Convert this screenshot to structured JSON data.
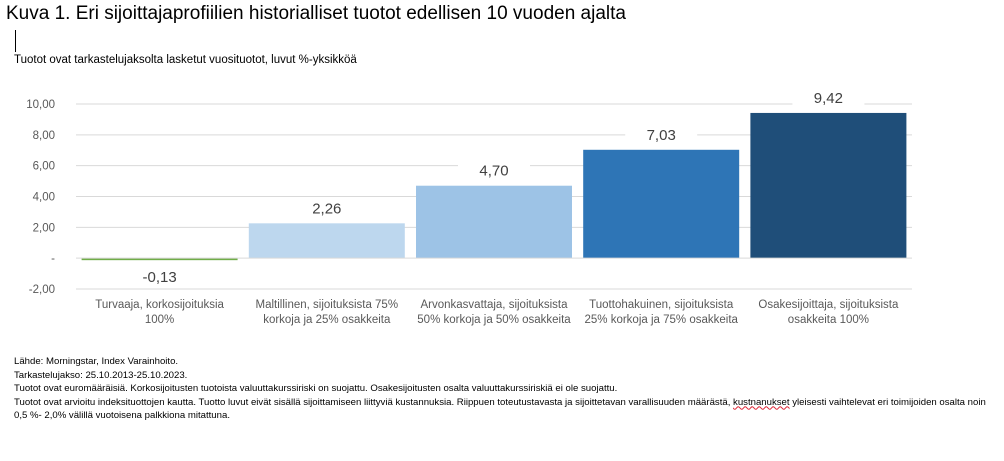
{
  "header": {
    "title": "Kuva 1. Eri sijoittajaprofiilien historialliset tuotot edellisen 10 vuoden ajalta",
    "subtitle": "Tuotot ovat tarkastelujaksolta lasketut vuosituotot, luvut %-yksikköä"
  },
  "chart_data": {
    "type": "bar",
    "title": "",
    "xlabel": "",
    "ylabel": "",
    "ylim": [
      -2,
      10
    ],
    "yticks": [
      10,
      8,
      6,
      4,
      2,
      0,
      -2
    ],
    "ytick_labels": [
      "10,00",
      "8,00",
      "6,00",
      "4,00",
      "2,00",
      "-",
      "-2,00"
    ],
    "grid": true,
    "categories": [
      [
        "Turvaaja, korkosijoituksia",
        "100%"
      ],
      [
        "Maltillinen, sijoituksista 75%",
        "korkoja ja 25% osakkeita"
      ],
      [
        "Arvonkasvattaja, sijoituksista",
        "50% korkoja ja 50% osakkeita"
      ],
      [
        "Tuottohakuinen, sijoituksista",
        "25% korkoja ja 75% osakkeita"
      ],
      [
        "Osakesijoittaja, sijoituksista",
        "osakkeita 100%"
      ]
    ],
    "values": [
      -0.13,
      2.26,
      4.7,
      7.03,
      9.42
    ],
    "value_labels": [
      "-0,13",
      "2,26",
      "4,70",
      "7,03",
      "9,42"
    ],
    "colors": [
      "#70ad47",
      "#bdd7ee",
      "#9dc3e6",
      "#2e75b6",
      "#1f4e79"
    ]
  },
  "notes": {
    "source": "Lähde: Morningstar, Index Varainhoito.",
    "period": "Tarkastelujakso: 25.10.2013-25.10.2023.",
    "currency": "Tuotot ovat euromääräisiä. Korkosijoitusten tuotoista valuuttakurssiriski on suojattu. Osakesijoitusten osalta valuuttakurssiriskiä ei ole suojattu.",
    "costs_before": "Tuotot ovat arvioitu indeksituottojen kautta. Tuotto luvut eivät sisällä sijoittamiseen liittyviä kustannuksia. Riippuen toteutustavasta ja sijoittetavan varallisuuden määrästä, ",
    "costs_word": "kustnanukset",
    "costs_after": " yleisesti vaihtelevat eri toimijoiden osalta noin 0,5 %- 2,0% välillä vuotoisena palkkiona mitattuna."
  }
}
